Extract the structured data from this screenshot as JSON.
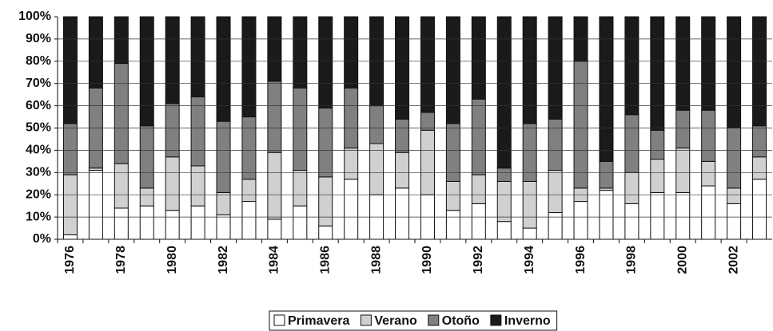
{
  "chart_data": {
    "type": "stacked_bar",
    "categories": [
      "1976",
      null,
      "1978",
      null,
      "1980",
      null,
      "1982",
      null,
      "1984",
      null,
      "1986",
      null,
      "1988",
      null,
      "1990",
      null,
      "1992",
      null,
      "1994",
      null,
      "1996",
      null,
      "1998",
      null,
      "2000",
      null,
      "2002",
      null
    ],
    "series": [
      {
        "name": "Primavera",
        "color": "#ffffff",
        "values": [
          2,
          31,
          14,
          15,
          13,
          15,
          11,
          17,
          9,
          15,
          6,
          27,
          20,
          23,
          20,
          13,
          16,
          8,
          5,
          12,
          17,
          22,
          16,
          21,
          21,
          24,
          16,
          27
        ]
      },
      {
        "name": "Verano",
        "color": "#d0d0d0",
        "values": [
          27,
          1,
          20,
          8,
          24,
          18,
          10,
          10,
          30,
          16,
          22,
          14,
          23,
          16,
          29,
          13,
          13,
          18,
          21,
          19,
          6,
          1,
          14,
          15,
          20,
          11,
          7,
          10
        ]
      },
      {
        "name": "Otoño",
        "color": "#808080",
        "values": [
          23,
          36,
          45,
          28,
          24,
          31,
          32,
          28,
          32,
          37,
          31,
          27,
          17,
          15,
          8,
          26,
          34,
          6,
          26,
          23,
          57,
          12,
          26,
          13,
          17,
          23,
          27,
          14
        ]
      },
      {
        "name": "Inverno",
        "color": "#1a1a1a",
        "values": [
          48,
          32,
          21,
          49,
          39,
          36,
          47,
          45,
          29,
          32,
          41,
          32,
          40,
          46,
          43,
          48,
          37,
          68,
          48,
          46,
          20,
          65,
          44,
          51,
          42,
          42,
          50,
          49
        ]
      }
    ],
    "ylim": [
      0,
      100
    ],
    "yticks": [
      {
        "value": 0,
        "label": "0%"
      },
      {
        "value": 10,
        "label": "10%"
      },
      {
        "value": 20,
        "label": "20%"
      },
      {
        "value": 30,
        "label": "30%"
      },
      {
        "value": 40,
        "label": "40%"
      },
      {
        "value": 50,
        "label": "50%"
      },
      {
        "value": 60,
        "label": "60%"
      },
      {
        "value": 70,
        "label": "70%"
      },
      {
        "value": 80,
        "label": "80%"
      },
      {
        "value": 90,
        "label": "90%"
      },
      {
        "value": 100,
        "label": "100%"
      }
    ],
    "grid": true,
    "legend": "bottom"
  }
}
